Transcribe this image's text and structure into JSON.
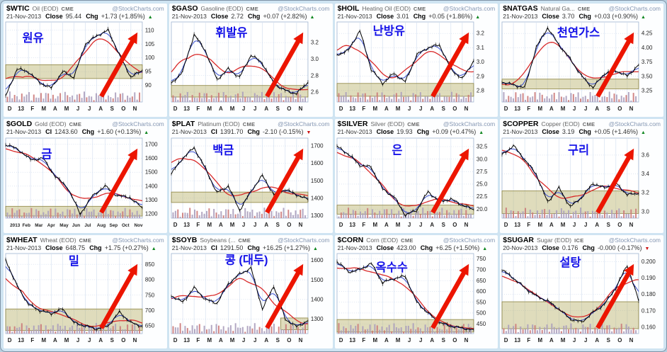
{
  "page": {
    "background": "#cfe4f2",
    "arrow_color": "#ec1500",
    "korean_label_color": "#1512e8",
    "up_color": "#118822",
    "down_color": "#cc1111"
  },
  "chart_data": [
    {
      "type": "candlestick",
      "symbol": "$WTIC",
      "name": "Oil (EOD)",
      "exchange": "CME",
      "source": "@StockCharts.com",
      "date": "21-Nov-2013",
      "close_label": "Close",
      "close": "95.44",
      "chg_label": "Chg",
      "chg": "+1.73 (+1.85%)",
      "direction": "up",
      "dir_glyph": "▲",
      "korean_label": "원유",
      "label_pos": [
        0.2,
        0.25
      ],
      "x_ticks": [
        "D",
        "13",
        "F",
        "M",
        "A",
        "M",
        "J",
        "J",
        "A",
        "S",
        "O",
        "N"
      ],
      "values": [
        86,
        96,
        95,
        91,
        89,
        95,
        93,
        105,
        108,
        110,
        101,
        93,
        95.4
      ],
      "ylim": [
        84,
        113
      ],
      "y_ticks": [
        {
          "v": 110,
          "t": "110"
        },
        {
          "v": 105,
          "t": "105"
        },
        {
          "v": 100,
          "t": "100"
        },
        {
          "v": 95,
          "t": "95"
        },
        {
          "v": 90,
          "t": "90"
        }
      ],
      "zone": {
        "low": 92.5,
        "high": 97.5,
        "x0": 0,
        "x1": 1
      }
    },
    {
      "type": "candlestick",
      "symbol": "$GASO",
      "name": "Gasoline (EOD)",
      "exchange": "CME",
      "source": "@StockCharts.com",
      "date": "21-Nov-2013",
      "close_label": "Close",
      "close": "2.72",
      "chg_label": "Chg",
      "chg": "+0.07 (+2.82%)",
      "direction": "up",
      "dir_glyph": "▲",
      "korean_label": "휘발유",
      "label_pos": [
        0.44,
        0.18
      ],
      "x_ticks": [
        "D",
        "13",
        "F",
        "M",
        "A",
        "M",
        "J",
        "J",
        "A",
        "S",
        "O",
        "N"
      ],
      "values": [
        2.7,
        2.85,
        3.3,
        3.1,
        2.75,
        2.88,
        2.78,
        3.05,
        2.95,
        2.7,
        2.62,
        2.58,
        2.72
      ],
      "ylim": [
        2.48,
        3.45
      ],
      "y_ticks": [
        {
          "v": 3.2,
          "t": "3.2"
        },
        {
          "v": 3.0,
          "t": "3.0"
        },
        {
          "v": 2.8,
          "t": "2.8"
        },
        {
          "v": 2.6,
          "t": "2.6"
        }
      ],
      "zone": {
        "low": 2.54,
        "high": 2.68,
        "x0": 0,
        "x1": 1
      }
    },
    {
      "type": "candlestick",
      "symbol": "$HOIL",
      "name": "Heating Oil (EOD)",
      "exchange": "CME",
      "source": "@StockCharts.com",
      "date": "21-Nov-2013",
      "close_label": "Close",
      "close": "3.01",
      "chg_label": "Chg",
      "chg": "+0.05 (+1.86%)",
      "direction": "up",
      "dir_glyph": "▲",
      "korean_label": "난방유",
      "label_pos": [
        0.38,
        0.16
      ],
      "x_ticks": [
        "D",
        "13",
        "F",
        "M",
        "A",
        "M",
        "J",
        "J",
        "A",
        "S",
        "O",
        "N"
      ],
      "values": [
        3.05,
        3.08,
        3.22,
        2.95,
        2.85,
        2.92,
        2.86,
        3.05,
        3.1,
        3.12,
        2.95,
        2.88,
        3.01
      ],
      "ylim": [
        2.72,
        3.28
      ],
      "y_ticks": [
        {
          "v": 3.2,
          "t": "3.2"
        },
        {
          "v": 3.1,
          "t": "3.1"
        },
        {
          "v": 3.0,
          "t": "3.0"
        },
        {
          "v": 2.9,
          "t": "2.9"
        },
        {
          "v": 2.8,
          "t": "2.8"
        }
      ],
      "zone": {
        "low": 2.76,
        "high": 2.85,
        "x0": 0,
        "x1": 1
      }
    },
    {
      "type": "candlestick",
      "symbol": "$NATGAS",
      "name": "Natural Ga...",
      "exchange": "CME",
      "source": "@StockCharts.com",
      "date": "21-Nov-2013",
      "close_label": "Close",
      "close": "3.70",
      "chg_label": "Chg",
      "chg": "+0.03 (+0.90%)",
      "direction": "up",
      "dir_glyph": "▲",
      "korean_label": "천연가스",
      "label_pos": [
        0.56,
        0.18
      ],
      "x_ticks": [
        "D",
        "13",
        "F",
        "M",
        "A",
        "M",
        "J",
        "J",
        "A",
        "S",
        "O",
        "N"
      ],
      "values": [
        3.4,
        3.35,
        3.3,
        4.0,
        4.35,
        4.05,
        3.8,
        3.5,
        3.3,
        3.55,
        3.6,
        3.5,
        3.7
      ],
      "ylim": [
        3.05,
        4.45
      ],
      "y_ticks": [
        {
          "v": 4.25,
          "t": "4.25"
        },
        {
          "v": 4.0,
          "t": "4.00"
        },
        {
          "v": 3.75,
          "t": "3.75"
        },
        {
          "v": 3.5,
          "t": "3.50"
        },
        {
          "v": 3.25,
          "t": "3.25"
        }
      ],
      "zone": {
        "low": 3.28,
        "high": 3.45,
        "x0": 0,
        "x1": 1
      }
    },
    {
      "type": "candlestick",
      "symbol": "$GOLD",
      "name": "Gold (EOD)",
      "exchange": "CME",
      "source": "@StockCharts.com",
      "date": "21-Nov-2013",
      "close_label": "Cl",
      "close": "1243.60",
      "chg_label": "Chg",
      "chg": "+1.60 (+0.13%)",
      "direction": "up",
      "dir_glyph": "▲",
      "korean_label": "금",
      "label_pos": [
        0.3,
        0.25
      ],
      "x_ticks": [
        "2013",
        "Feb",
        "Mar",
        "Apr",
        "May",
        "Jun",
        "Jul",
        "Aug",
        "Sep",
        "Oct",
        "Nov"
      ],
      "values": [
        1700,
        1665,
        1590,
        1600,
        1470,
        1390,
        1200,
        1330,
        1400,
        1330,
        1320,
        1243
      ],
      "ylim": [
        1170,
        1745
      ],
      "y_ticks": [
        {
          "v": 1700,
          "t": "1700"
        },
        {
          "v": 1600,
          "t": "1600"
        },
        {
          "v": 1500,
          "t": "1500"
        },
        {
          "v": 1400,
          "t": "1400"
        },
        {
          "v": 1300,
          "t": "1300"
        },
        {
          "v": 1200,
          "t": "1200"
        }
      ],
      "zone": {
        "low": 1185,
        "high": 1255,
        "x0": 0,
        "x1": 1
      }
    },
    {
      "type": "candlestick",
      "symbol": "$PLAT",
      "name": "Platinum (EOD)",
      "exchange": "CME",
      "source": "@StockCharts.com",
      "date": "21-Nov-2013",
      "close_label": "Cl",
      "close": "1391.70",
      "chg_label": "Chg",
      "chg": "-2.10 (-0.15%)",
      "direction": "down",
      "dir_glyph": "▼",
      "korean_label": "백금",
      "label_pos": [
        0.38,
        0.2
      ],
      "x_ticks": [
        "D",
        "13",
        "F",
        "M",
        "A",
        "M",
        "J",
        "J",
        "A",
        "S",
        "O",
        "N"
      ],
      "values": [
        1540,
        1630,
        1690,
        1570,
        1430,
        1470,
        1330,
        1440,
        1530,
        1420,
        1450,
        1420,
        1391
      ],
      "ylim": [
        1285,
        1745
      ],
      "y_ticks": [
        {
          "v": 1700,
          "t": "1700"
        },
        {
          "v": 1600,
          "t": "1600"
        },
        {
          "v": 1500,
          "t": "1500"
        },
        {
          "v": 1400,
          "t": "1400"
        },
        {
          "v": 1300,
          "t": "1300"
        }
      ],
      "zone": {
        "low": 1375,
        "high": 1435,
        "x0": 0,
        "x1": 1
      }
    },
    {
      "type": "candlestick",
      "symbol": "$SILVER",
      "name": "Silver (EOD)",
      "exchange": "CME",
      "source": "@StockCharts.com",
      "date": "21-Nov-2013",
      "close_label": "Close",
      "close": "19.93",
      "chg_label": "Chg",
      "chg": "+0.09 (+0.47%)",
      "direction": "up",
      "dir_glyph": "▲",
      "korean_label": "은",
      "label_pos": [
        0.44,
        0.2
      ],
      "x_ticks": [
        "D",
        "13",
        "F",
        "M",
        "A",
        "M",
        "J",
        "J",
        "A",
        "S",
        "O",
        "N"
      ],
      "values": [
        32.5,
        31.0,
        28.8,
        28.4,
        24.0,
        22.5,
        18.8,
        19.8,
        23.5,
        21.5,
        22.0,
        20.8,
        19.9
      ],
      "ylim": [
        18.2,
        34.2
      ],
      "y_ticks": [
        {
          "v": 32.5,
          "t": "32.5"
        },
        {
          "v": 30.0,
          "t": "30.0"
        },
        {
          "v": 27.5,
          "t": "27.5"
        },
        {
          "v": 25.0,
          "t": "25.0"
        },
        {
          "v": 22.5,
          "t": "22.5"
        },
        {
          "v": 20.0,
          "t": "20.0"
        }
      ],
      "zone": {
        "low": 19.0,
        "high": 20.8,
        "x0": 0,
        "x1": 1
      }
    },
    {
      "type": "candlestick",
      "symbol": "$COPPER",
      "name": "Copper (EOD)",
      "exchange": "CME",
      "source": "@StockCharts.com",
      "date": "21-Nov-2013",
      "close_label": "Close",
      "close": "3.19",
      "chg_label": "Chg",
      "chg": "+0.05 (+1.46%)",
      "direction": "up",
      "dir_glyph": "▲",
      "korean_label": "구리",
      "label_pos": [
        0.56,
        0.2
      ],
      "x_ticks": [
        "D",
        "13",
        "F",
        "M",
        "A",
        "M",
        "J",
        "J",
        "A",
        "S",
        "O",
        "N"
      ],
      "values": [
        3.6,
        3.7,
        3.55,
        3.4,
        3.1,
        3.25,
        3.05,
        3.15,
        3.3,
        3.25,
        3.3,
        3.18,
        3.19
      ],
      "ylim": [
        2.93,
        3.78
      ],
      "y_ticks": [
        {
          "v": 3.6,
          "t": "3.6"
        },
        {
          "v": 3.4,
          "t": "3.4"
        },
        {
          "v": 3.2,
          "t": "3.2"
        },
        {
          "v": 3.0,
          "t": "3.0"
        }
      ],
      "zone": {
        "low": 2.98,
        "high": 3.22,
        "x0": 0,
        "x1": 1
      }
    },
    {
      "type": "candlestick",
      "symbol": "$WHEAT",
      "name": "Wheat (EOD)",
      "exchange": "CME",
      "source": "@StockCharts.com",
      "date": "21-Nov-2013",
      "close_label": "Close",
      "close": "648.75",
      "chg_label": "Chg",
      "chg": "+1.75 (+0.27%)",
      "direction": "up",
      "dir_glyph": "▲",
      "korean_label": "밀",
      "label_pos": [
        0.5,
        0.14
      ],
      "x_ticks": [
        "D",
        "13",
        "F",
        "M",
        "A",
        "M",
        "J",
        "J",
        "A",
        "S",
        "O",
        "N"
      ],
      "values": [
        865,
        780,
        720,
        700,
        690,
        705,
        660,
        650,
        640,
        650,
        695,
        660,
        649
      ],
      "ylim": [
        625,
        885
      ],
      "y_ticks": [
        {
          "v": 850,
          "t": "850"
        },
        {
          "v": 800,
          "t": "800"
        },
        {
          "v": 750,
          "t": "750"
        },
        {
          "v": 700,
          "t": "700"
        },
        {
          "v": 650,
          "t": "650"
        }
      ],
      "zone": {
        "low": 635,
        "high": 705,
        "x0": 0,
        "x1": 1
      }
    },
    {
      "type": "candlestick",
      "symbol": "$SOYB",
      "name": "Soybeans (...",
      "exchange": "CME",
      "source": "@StockCharts.com",
      "date": "21-Nov-2013",
      "close_label": "Cl",
      "close": "1291.50",
      "chg_label": "Chg",
      "chg": "+16.25 (+1.27%)",
      "direction": "up",
      "dir_glyph": "▲",
      "korean_label": "콩 (대두)",
      "label_pos": [
        0.55,
        0.13
      ],
      "x_ticks": [
        "D",
        "13",
        "F",
        "M",
        "A",
        "M",
        "J",
        "J",
        "A",
        "S",
        "O",
        "N"
      ],
      "values": [
        1420,
        1385,
        1460,
        1400,
        1380,
        1480,
        1530,
        1560,
        1350,
        1470,
        1300,
        1260,
        1291
      ],
      "ylim": [
        1225,
        1635
      ],
      "y_ticks": [
        {
          "v": 1600,
          "t": "1600"
        },
        {
          "v": 1500,
          "t": "1500"
        },
        {
          "v": 1400,
          "t": "1400"
        },
        {
          "v": 1300,
          "t": "1300"
        }
      ],
      "zone": {
        "low": 1245,
        "high": 1305,
        "x0": 0.8,
        "x1": 1
      }
    },
    {
      "type": "candlestick",
      "symbol": "$CORN",
      "name": "Corn (EOD)",
      "exchange": "CME",
      "source": "@StockCharts.com",
      "date": "21-Nov-2013",
      "close_label": "Close",
      "close": "423.00",
      "chg_label": "Chg",
      "chg": "+6.25 (+1.50%)",
      "direction": "up",
      "dir_glyph": "▲",
      "korean_label": "옥수수",
      "label_pos": [
        0.4,
        0.22
      ],
      "x_ticks": [
        "D",
        "13",
        "F",
        "M",
        "A",
        "M",
        "J",
        "J",
        "A",
        "S",
        "O",
        "N"
      ],
      "values": [
        740,
        690,
        700,
        730,
        640,
        660,
        670,
        550,
        500,
        455,
        440,
        430,
        423
      ],
      "ylim": [
        405,
        775
      ],
      "y_ticks": [
        {
          "v": 750,
          "t": "750"
        },
        {
          "v": 700,
          "t": "700"
        },
        {
          "v": 650,
          "t": "650"
        },
        {
          "v": 600,
          "t": "600"
        },
        {
          "v": 550,
          "t": "550"
        },
        {
          "v": 500,
          "t": "500"
        },
        {
          "v": 450,
          "t": "450"
        }
      ],
      "zone": {
        "low": 412,
        "high": 470,
        "x0": 0,
        "x1": 1
      }
    },
    {
      "type": "candlestick",
      "symbol": "$SUGAR",
      "name": "Sugar (EOD)",
      "exchange": "ICE",
      "source": "@StockCharts.com",
      "date": "20-Nov-2013",
      "close_label": "Close",
      "close": "0.176",
      "chg_label": "Chg",
      "chg": "-0.000 (-0.17%)",
      "direction": "down",
      "dir_glyph": "▼",
      "korean_label": "설탕",
      "label_pos": [
        0.5,
        0.16
      ],
      "x_ticks": [
        "D",
        "13",
        "F",
        "M",
        "A",
        "M",
        "J",
        "J",
        "A",
        "S",
        "O",
        "N"
      ],
      "values": [
        0.195,
        0.19,
        0.184,
        0.179,
        0.176,
        0.171,
        0.165,
        0.163,
        0.169,
        0.174,
        0.184,
        0.198,
        0.176
      ],
      "ylim": [
        0.156,
        0.205
      ],
      "y_ticks": [
        {
          "v": 0.2,
          "t": "0.200"
        },
        {
          "v": 0.19,
          "t": "0.190"
        },
        {
          "v": 0.18,
          "t": "0.180"
        },
        {
          "v": 0.17,
          "t": "0.170"
        },
        {
          "v": 0.16,
          "t": "0.160"
        }
      ],
      "zone": {
        "low": 0.159,
        "high": 0.1755,
        "x0": 0,
        "x1": 1
      }
    }
  ]
}
